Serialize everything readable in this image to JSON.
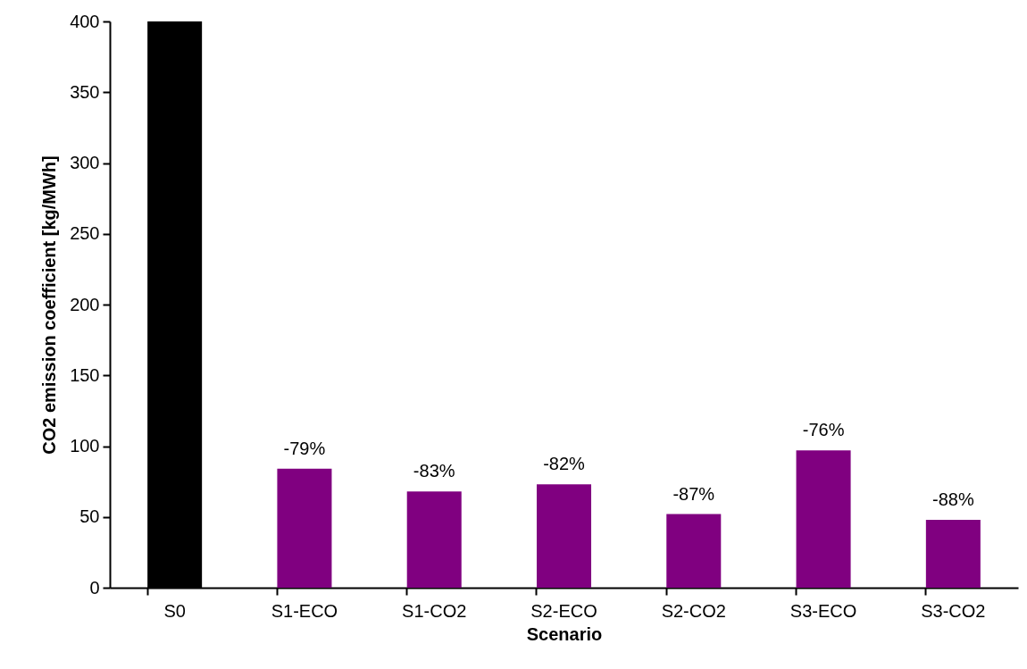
{
  "chart_data": {
    "type": "bar",
    "xlabel": "Scenario",
    "ylabel": "CO2 emission coefficient [kg/MWh]",
    "categories": [
      "S0",
      "S1-ECO",
      "S1-CO2",
      "S2-ECO",
      "S2-CO2",
      "S3-ECO",
      "S3-CO2"
    ],
    "values": [
      400,
      84,
      68,
      73,
      52,
      97,
      48
    ],
    "colors": [
      "#000000",
      "#800080",
      "#800080",
      "#800080",
      "#800080",
      "#800080",
      "#800080"
    ],
    "annotations": [
      {
        "text": "-79%",
        "x": "S1-ECO",
        "y": 84
      },
      {
        "text": "-83%",
        "x": "S1-CO2",
        "y": 68
      },
      {
        "text": "-82%",
        "x": "S2-ECO",
        "y": 73
      },
      {
        "text": "-87%",
        "x": "S2-CO2",
        "y": 52
      },
      {
        "text": "-76%",
        "x": "S3-ECO",
        "y": 97
      },
      {
        "text": "-88%",
        "x": "S3-CO2",
        "y": 48
      }
    ],
    "ylim": [
      0,
      400
    ],
    "yticks": [
      0,
      50,
      100,
      150,
      200,
      250,
      300,
      350,
      400
    ],
    "grid": false
  }
}
